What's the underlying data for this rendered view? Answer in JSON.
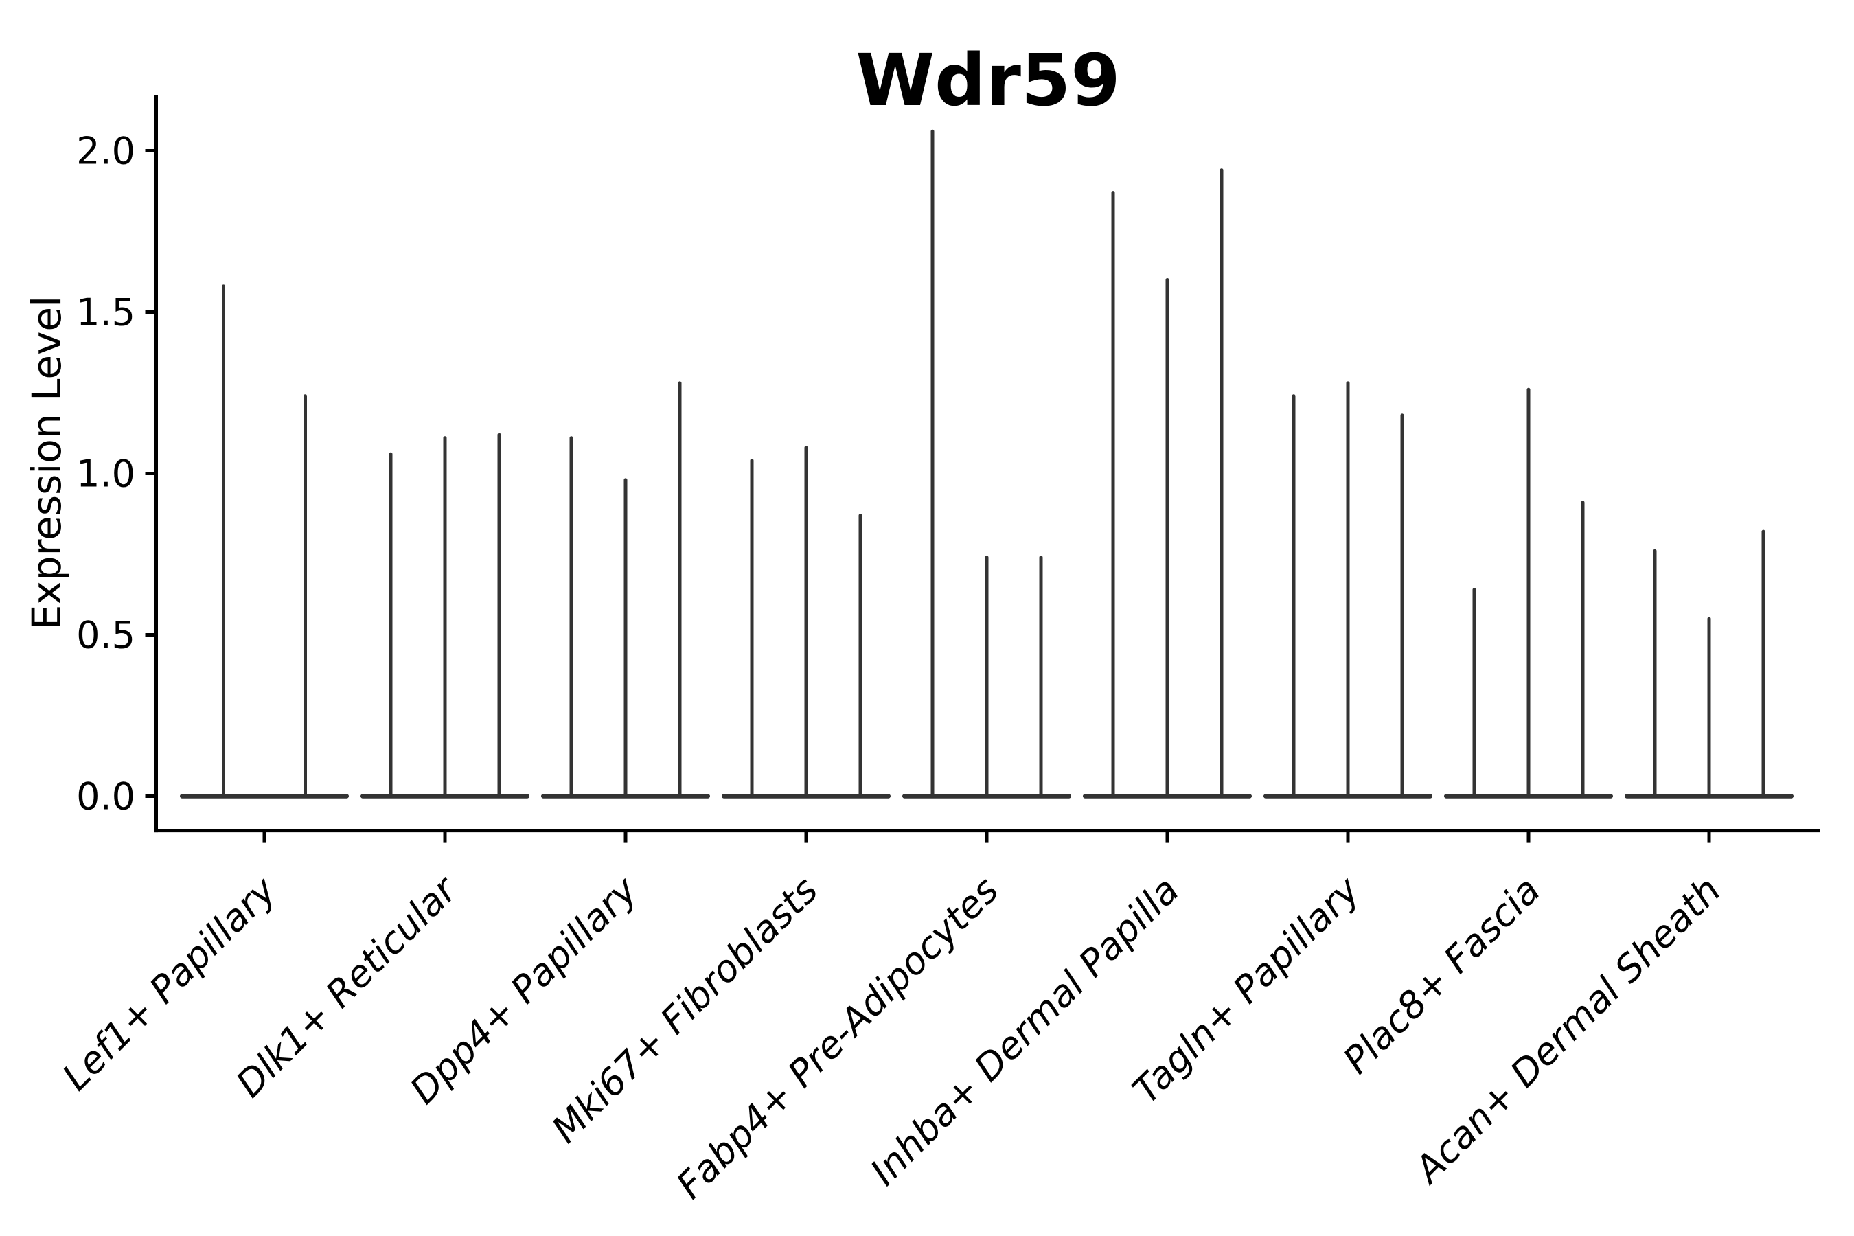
{
  "page": {
    "background_color": "#ffffff"
  },
  "style": {
    "violin_color": "#333333",
    "axis_color": "#000000",
    "text_color": "#000000"
  },
  "chart_data": {
    "type": "violin",
    "title": "Wdr59",
    "xlabel": "",
    "ylabel": "Expression Level",
    "ylim": [
      0,
      2.0
    ],
    "grid": false,
    "legend_position": "none",
    "ytick_labels": [
      "0.0",
      "0.5",
      "1.0",
      "1.5",
      "2.0"
    ],
    "ytick_values": [
      0.0,
      0.5,
      1.0,
      1.5,
      2.0
    ],
    "categories": [
      "Lef1+ Papillary",
      "Dlk1+ Reticular",
      "Dpp4+ Papillary",
      "Mki67+ Fibroblasts",
      "Fabp4+ Pre-Adipocytes",
      "Inhba+ Dermal Papilla",
      "Tagln+ Papillary",
      "Plac8+ Fascia",
      "Acan+ Dermal Sheath"
    ],
    "series": [
      {
        "name": "Lef1+ Papillary",
        "values": [
          1.58,
          1.24
        ]
      },
      {
        "name": "Dlk1+ Reticular",
        "values": [
          1.06,
          1.11,
          1.12
        ]
      },
      {
        "name": "Dpp4+ Papillary",
        "values": [
          1.11,
          0.98,
          1.28
        ]
      },
      {
        "name": "Mki67+ Fibroblasts",
        "values": [
          1.04,
          1.08,
          0.87
        ]
      },
      {
        "name": "Fabp4+ Pre-Adipocytes",
        "values": [
          2.06,
          0.74,
          0.74
        ]
      },
      {
        "name": "Inhba+ Dermal Papilla",
        "values": [
          1.87,
          1.6,
          1.94
        ]
      },
      {
        "name": "Tagln+ Papillary",
        "values": [
          1.24,
          1.28,
          1.18
        ]
      },
      {
        "name": "Plac8+ Fascia",
        "values": [
          0.64,
          1.26,
          0.91
        ]
      },
      {
        "name": "Acan+ Dermal Sheath",
        "values": [
          0.76,
          0.55,
          0.82
        ]
      }
    ]
  }
}
